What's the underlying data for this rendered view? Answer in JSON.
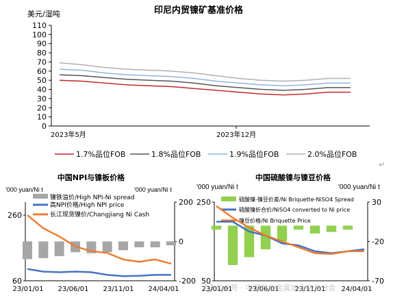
{
  "chart_data": [
    {
      "type": "line",
      "title": "印尼内贸镍矿基准价格",
      "ylabel": "美元/湿吨",
      "ylim": [
        0,
        110
      ],
      "yticks": [
        0,
        10,
        20,
        30,
        40,
        50,
        60,
        70,
        80,
        90,
        100,
        110
      ],
      "xticks": [
        "2023年5月",
        "2023年12月"
      ],
      "x": [
        "2023-05",
        "2023-06",
        "2023-07",
        "2023-08",
        "2023-09",
        "2023-10",
        "2023-11",
        "2023-12",
        "2024-01",
        "2024-02",
        "2024-03",
        "2024-04",
        "2024-05",
        "2024-06"
      ],
      "series": [
        {
          "name": "1.7%品位FOB",
          "color": "#c0282d",
          "values": [
            50,
            49,
            47,
            45,
            44,
            43,
            41,
            39,
            37,
            35,
            34,
            35,
            37,
            37
          ]
        },
        {
          "name": "1.8%品位FOB",
          "color": "#555555",
          "values": [
            56,
            55,
            53,
            51,
            50,
            49,
            47,
            44,
            42,
            40,
            39,
            40,
            42,
            42
          ]
        },
        {
          "name": "1.9%品位FOB",
          "color": "#8fb5dc",
          "values": [
            62,
            61,
            58,
            56,
            55,
            54,
            52,
            49,
            47,
            45,
            44,
            45,
            47,
            47
          ]
        },
        {
          "name": "2.0%品位FOB",
          "color": "#b0b0b0",
          "values": [
            69,
            67,
            64,
            62,
            61,
            60,
            58,
            55,
            52,
            50,
            49,
            50,
            52,
            52
          ]
        }
      ]
    },
    {
      "type": "line",
      "title": "中国NPI与镍板价格",
      "y_left_unit": "'000 yuan/Ni t",
      "y_right_unit": "'000 yuan/Ni t",
      "ylim_left": [
        60,
        300
      ],
      "yticks_left": [
        60,
        260
      ],
      "ylim_right": [
        -200,
        200
      ],
      "yticks_right": [
        -200,
        0,
        200
      ],
      "xticks": [
        "23/01/01",
        "23/06/01",
        "23/11/01",
        "24/04/01"
      ],
      "x": [
        "23/01",
        "23/03",
        "23/05",
        "23/07",
        "23/09",
        "23/11",
        "24/01",
        "24/03",
        "24/05",
        "24/07"
      ],
      "series": [
        {
          "name": "镍铁溢价/High NPI-Ni spread",
          "axis": "right",
          "kind": "bar",
          "color": "#a6a6a6",
          "values": [
            -90,
            -85,
            -75,
            -55,
            -60,
            -55,
            -45,
            -30,
            -30,
            -20
          ]
        },
        {
          "name": "高NPI价格/High NPI price",
          "axis": "left",
          "color": "#4472c4",
          "values": [
            96,
            88,
            86,
            88,
            86,
            78,
            74,
            75,
            78,
            78
          ]
        },
        {
          "name": "长江现货镍价/Changjiang Ni Cash",
          "axis": "left",
          "color": "#ed7d31",
          "values": [
            260,
            220,
            195,
            165,
            150,
            145,
            125,
            118,
            125,
            112
          ]
        }
      ]
    },
    {
      "type": "line",
      "title": "中国硫酸镍与镍豆价格",
      "y_left_unit": "'000 yuan/Ni t",
      "y_right_unit": "'000 yuan/Ni t",
      "ylim_left": [
        50,
        250
      ],
      "yticks_left": [
        50,
        250
      ],
      "ylim_right": [
        -70,
        30
      ],
      "yticks_right": [
        -70,
        -20,
        30
      ],
      "xticks": [
        "23/01/01",
        "23/06/01",
        "23/11/01",
        "24/04/01"
      ],
      "x": [
        "23/01",
        "23/03",
        "23/05",
        "23/07",
        "23/09",
        "23/11",
        "24/01",
        "24/03",
        "24/05",
        "24/07"
      ],
      "series": [
        {
          "name": "硫酸镍-镍豆价差/Ni Briquette-NiSO4 Spread",
          "axis": "right",
          "kind": "bar",
          "color": "#92d050",
          "values": [
            -5,
            -50,
            -40,
            -30,
            -20,
            -5,
            -10,
            -8,
            -5,
            0
          ]
        },
        {
          "name": "硫酸镍折合价/NiSO4 converted to Ni price",
          "axis": "left",
          "color": "#4472c4",
          "values": [
            200,
            200,
            175,
            165,
            145,
            140,
            125,
            120,
            125,
            130
          ]
        },
        {
          "name": "镍豆价格/Ni Briquette Price",
          "axis": "left",
          "color": "#ed7d31",
          "values": [
            240,
            210,
            185,
            165,
            150,
            135,
            120,
            118,
            125,
            125
          ]
        }
      ]
    }
  ],
  "watermark": "公众号 · 中国有色金属协会钴业分会"
}
